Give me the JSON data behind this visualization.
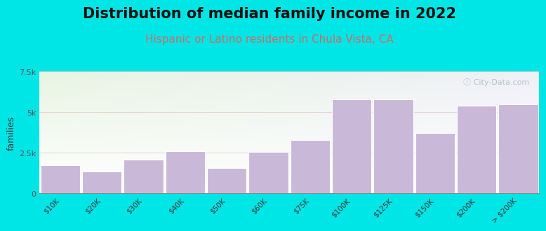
{
  "title": "Distribution of median family income in 2022",
  "subtitle": "Hispanic or Latino residents in Chula Vista, CA",
  "categories": [
    "$10K",
    "$20K",
    "$30K",
    "$40K",
    "$50K",
    "$60K",
    "$75K",
    "$100K",
    "$125K",
    "$150K",
    "$200K",
    "> $200K"
  ],
  "values": [
    1750,
    1350,
    2100,
    2600,
    1550,
    2550,
    3300,
    5800,
    5800,
    3700,
    5400,
    5500
  ],
  "bar_color": "#c9b8d8",
  "bar_edge_color": "#ffffff",
  "background_color": "#00e5e5",
  "plot_bg_color_top": "#e8f5e2",
  "plot_bg_color_bottom": "#f8faf5",
  "plot_bg_color_right": "#f0f0f8",
  "ylabel": "families",
  "ylim": [
    0,
    7500
  ],
  "yticks": [
    0,
    2500,
    5000,
    7500
  ],
  "ytick_labels": [
    "0",
    "2.5k",
    "5k",
    "7.5k"
  ],
  "title_fontsize": 15,
  "subtitle_fontsize": 11,
  "subtitle_color": "#c07070",
  "watermark": "ⓘ City-Data.com",
  "watermark_color": "#aabbbb"
}
